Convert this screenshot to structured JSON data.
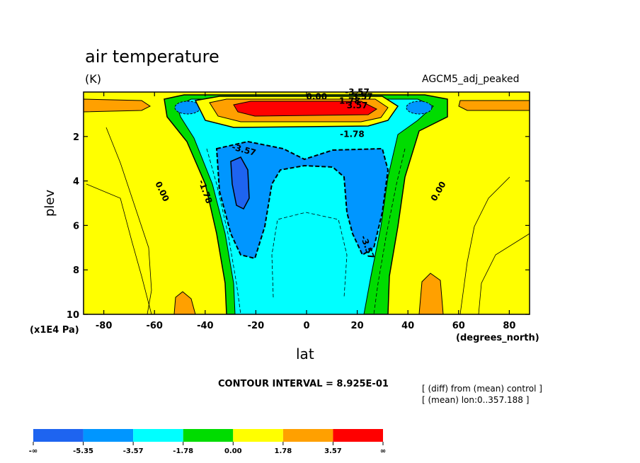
{
  "chart_data": {
    "type": "heatmap",
    "title": "air temperature",
    "units": "(K)",
    "dataset": "AGCM5_adj_peaked",
    "xlabel": "lat",
    "x_unit": "(degrees_north)",
    "ylabel": "plev",
    "y_unit": "(x1E4 Pa)",
    "xlim": [
      -88,
      88
    ],
    "ylim": [
      0,
      10
    ],
    "y_inverted": true,
    "x_ticks": [
      -80,
      -60,
      -40,
      -20,
      0,
      20,
      40,
      60,
      80
    ],
    "x_tick_labels": [
      "-80",
      "-60",
      "-40",
      "-20",
      "0",
      "20",
      "40",
      "60",
      "80"
    ],
    "y_ticks": [
      2,
      4,
      6,
      8,
      10
    ],
    "y_tick_labels": [
      "2",
      "4",
      "6",
      "8",
      "10"
    ],
    "contour_interval": "CONTOUR INTERVAL = 8.925E-01",
    "notes": [
      "[ (diff) from (mean) control ]",
      "[ (mean) lon:0..357.188 ]"
    ],
    "contour_labels": [
      "0.00",
      "0.00",
      "-1.78",
      "-1.78",
      "-3.57",
      "-3.57",
      "-3.57",
      "1.78",
      "3.57",
      "3.57",
      "0.00"
    ],
    "colorbar": {
      "bins": [
        {
          "color": "#1e64f0",
          "label": "-∞"
        },
        {
          "color": "#0096ff",
          "label": "-5.35"
        },
        {
          "color": "#00ffff",
          "label": "-3.57"
        },
        {
          "color": "#00dc00",
          "label": "-1.78"
        },
        {
          "color": "#ffff00",
          "label": "0.00"
        },
        {
          "color": "#ffa000",
          "label": "1.78"
        },
        {
          "color": "#ff0000",
          "label": "3.57"
        }
      ],
      "end_label": "∞"
    },
    "field": {
      "description_levels": [
        -5.35,
        -3.57,
        -1.78,
        0,
        1.78,
        3.57
      ],
      "tropics_upper_warming_center": {
        "lat": 0,
        "plev": 0.7,
        "value_range": ">3.57"
      },
      "cooling_cores": [
        {
          "lat": -25,
          "plev": 4.5,
          "value_range": "<-5.35"
        },
        {
          "lat": 22,
          "plev": 4.5,
          "value_range": "-5.35 to -3.57"
        }
      ],
      "warm_patches_lower": [
        {
          "lat": -50,
          "plev": 9.5,
          "value_range": "1.78 to 3.57"
        },
        {
          "lat": 50,
          "plev": 9,
          "value_range": "1.78 to 3.57"
        }
      ]
    }
  }
}
